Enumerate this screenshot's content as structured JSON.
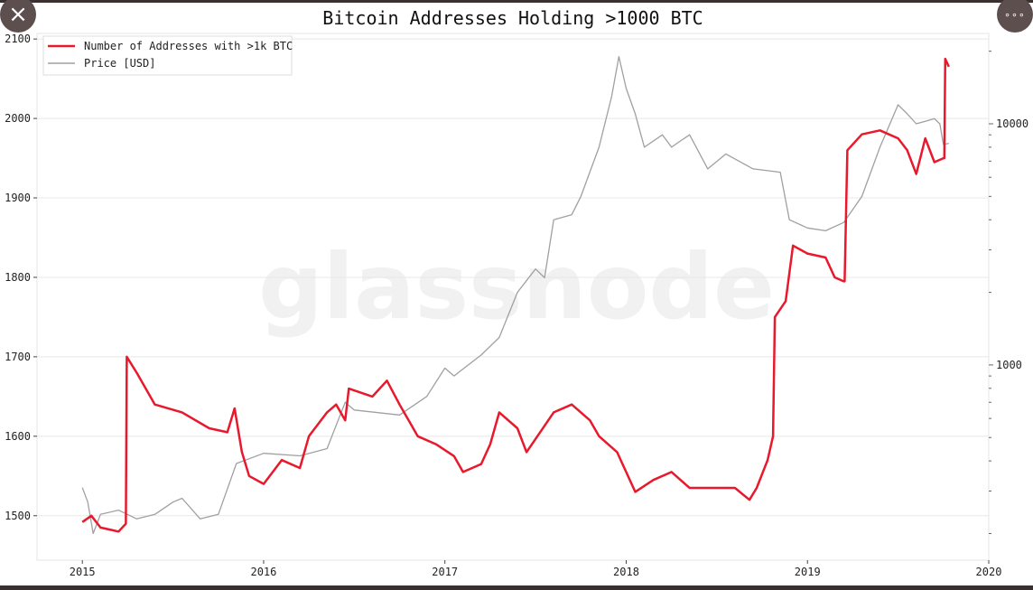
{
  "controls": {
    "close_icon": "×",
    "more_icon": "∘∘∘"
  },
  "watermark": "glassnode",
  "chart_data": {
    "type": "line",
    "title": "Bitcoin Addresses Holding >1000 BTC",
    "xlabel": "",
    "ylabel_left": "",
    "ylabel_right": "",
    "xlim": [
      2014.75,
      2020.0
    ],
    "ylim_left": [
      1444,
      2107
    ],
    "ylim_right": [
      155,
      23700
    ],
    "right_axis_scale": "log",
    "grid": true,
    "legend_position": "top-left",
    "x_ticks": [
      "2015",
      "2016",
      "2017",
      "2018",
      "2019",
      "2020"
    ],
    "y_ticks_left": [
      "1500",
      "1600",
      "1700",
      "1800",
      "1900",
      "2000",
      "2100"
    ],
    "y_ticks_right": [
      "1000",
      "10000"
    ],
    "series": [
      {
        "name": "Number of Addresses with >1k BTC",
        "axis": "left",
        "color": "#e8192c",
        "x": [
          2015.0,
          2015.05,
          2015.1,
          2015.2,
          2015.24,
          2015.245,
          2015.3,
          2015.4,
          2015.55,
          2015.7,
          2015.8,
          2015.84,
          2015.88,
          2015.92,
          2016.0,
          2016.1,
          2016.2,
          2016.25,
          2016.35,
          2016.4,
          2016.45,
          2016.47,
          2016.6,
          2016.68,
          2016.75,
          2016.8,
          2016.85,
          2016.95,
          2017.05,
          2017.1,
          2017.2,
          2017.25,
          2017.3,
          2017.4,
          2017.45,
          2017.6,
          2017.7,
          2017.8,
          2017.85,
          2017.95,
          2018.05,
          2018.15,
          2018.25,
          2018.35,
          2018.5,
          2018.6,
          2018.68,
          2018.72,
          2018.78,
          2018.81,
          2018.82,
          2018.88,
          2018.92,
          2019.0,
          2019.1,
          2019.15,
          2019.2,
          2019.205,
          2019.22,
          2019.3,
          2019.4,
          2019.5,
          2019.55,
          2019.6,
          2019.65,
          2019.7,
          2019.75,
          2019.755,
          2019.76,
          2019.78
        ],
        "values": [
          1492,
          1500,
          1485,
          1480,
          1490,
          1700,
          1680,
          1640,
          1630,
          1610,
          1605,
          1635,
          1580,
          1550,
          1540,
          1570,
          1560,
          1600,
          1630,
          1640,
          1620,
          1660,
          1650,
          1670,
          1640,
          1620,
          1600,
          1590,
          1575,
          1555,
          1565,
          1590,
          1630,
          1610,
          1580,
          1630,
          1640,
          1620,
          1600,
          1580,
          1530,
          1545,
          1555,
          1535,
          1535,
          1535,
          1520,
          1535,
          1570,
          1600,
          1750,
          1770,
          1840,
          1830,
          1825,
          1800,
          1795,
          1795,
          1960,
          1980,
          1985,
          1975,
          1960,
          1930,
          1975,
          1945,
          1950,
          1950,
          2075,
          2065
        ]
      },
      {
        "name": "Price [USD]",
        "axis": "right",
        "color": "#a0a0a0",
        "x": [
          2015.0,
          2015.03,
          2015.06,
          2015.1,
          2015.2,
          2015.3,
          2015.4,
          2015.5,
          2015.55,
          2015.65,
          2015.75,
          2015.85,
          2016.0,
          2016.2,
          2016.35,
          2016.45,
          2016.5,
          2016.75,
          2016.9,
          2017.0,
          2017.05,
          2017.2,
          2017.3,
          2017.4,
          2017.5,
          2017.55,
          2017.6,
          2017.7,
          2017.75,
          2017.85,
          2017.92,
          2017.96,
          2018.0,
          2018.05,
          2018.1,
          2018.2,
          2018.25,
          2018.3,
          2018.35,
          2018.45,
          2018.55,
          2018.7,
          2018.85,
          2018.9,
          2019.0,
          2019.1,
          2019.2,
          2019.3,
          2019.4,
          2019.5,
          2019.55,
          2019.6,
          2019.7,
          2019.73,
          2019.75,
          2019.78
        ],
        "values": [
          310,
          270,
          200,
          240,
          250,
          230,
          240,
          270,
          280,
          230,
          240,
          390,
          430,
          420,
          450,
          700,
          650,
          620,
          740,
          970,
          900,
          1100,
          1300,
          2000,
          2500,
          2300,
          4000,
          4200,
          5000,
          8000,
          13000,
          19000,
          14000,
          11000,
          8000,
          9000,
          8000,
          8500,
          9000,
          6500,
          7500,
          6500,
          6300,
          4000,
          3700,
          3600,
          3900,
          5000,
          8000,
          12000,
          11000,
          10000,
          10500,
          10000,
          8200,
          8300
        ]
      }
    ]
  }
}
